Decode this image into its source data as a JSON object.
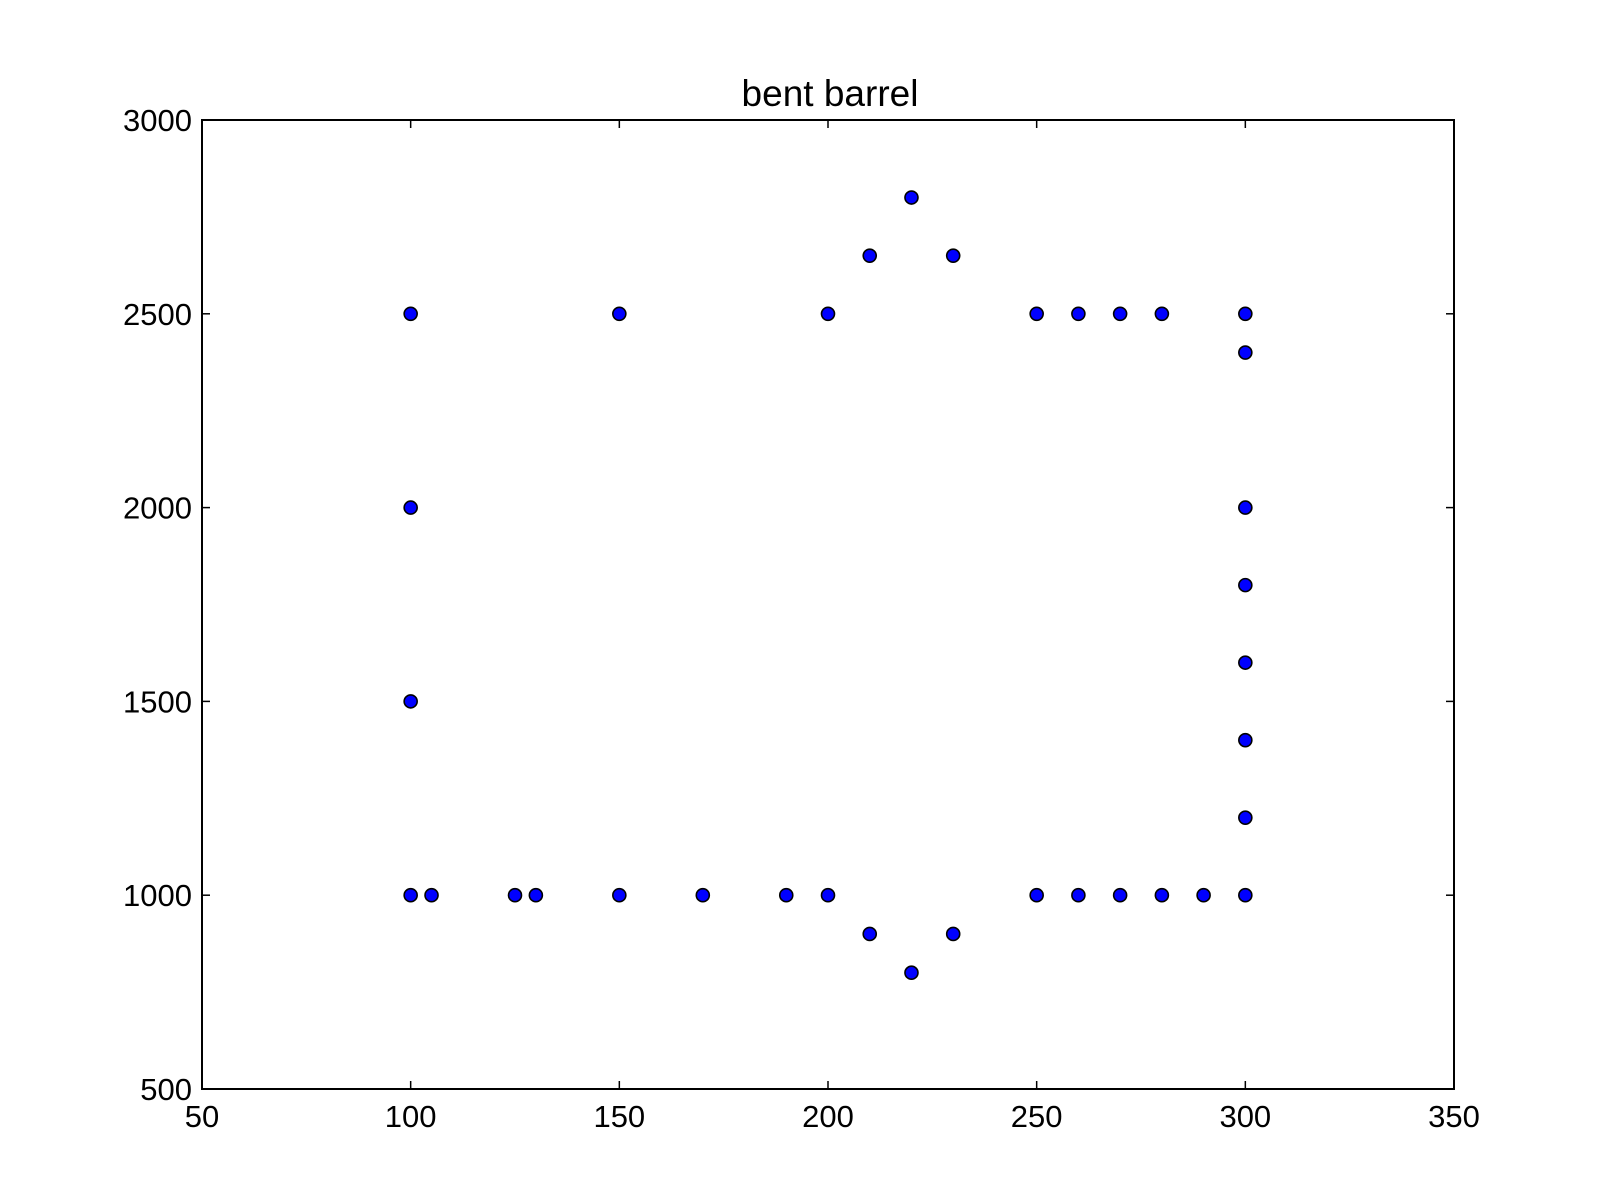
{
  "chart_data": {
    "type": "scatter",
    "title": "bent barrel",
    "xlabel": "",
    "ylabel": "",
    "xlim": [
      50,
      350
    ],
    "ylim": [
      500,
      3000
    ],
    "x_ticks": [
      50,
      100,
      150,
      200,
      250,
      300,
      350
    ],
    "y_ticks": [
      500,
      1000,
      1500,
      2000,
      2500,
      3000
    ],
    "x_tick_labels": [
      "50",
      "100",
      "150",
      "200",
      "250",
      "300",
      "350"
    ],
    "y_tick_labels": [
      "500",
      "1000",
      "1500",
      "2000",
      "2500",
      "3000"
    ],
    "grid": false,
    "legend": "none",
    "marker_color": "#0000ff",
    "marker_edge_color": "#000000",
    "series": [
      {
        "points": [
          [
            100,
            2500
          ],
          [
            150,
            2500
          ],
          [
            200,
            2500
          ],
          [
            210,
            2650
          ],
          [
            220,
            2800
          ],
          [
            230,
            2650
          ],
          [
            250,
            2500
          ],
          [
            260,
            2500
          ],
          [
            270,
            2500
          ],
          [
            280,
            2500
          ],
          [
            300,
            2500
          ],
          [
            300,
            2400
          ],
          [
            100,
            2000
          ],
          [
            300,
            2000
          ],
          [
            300,
            1800
          ],
          [
            300,
            1600
          ],
          [
            100,
            1500
          ],
          [
            300,
            1400
          ],
          [
            300,
            1200
          ],
          [
            100,
            1000
          ],
          [
            105,
            1000
          ],
          [
            125,
            1000
          ],
          [
            130,
            1000
          ],
          [
            150,
            1000
          ],
          [
            170,
            1000
          ],
          [
            190,
            1000
          ],
          [
            200,
            1000
          ],
          [
            210,
            900
          ],
          [
            220,
            800
          ],
          [
            230,
            900
          ],
          [
            250,
            1000
          ],
          [
            260,
            1000
          ],
          [
            270,
            1000
          ],
          [
            280,
            1000
          ],
          [
            290,
            1000
          ],
          [
            300,
            1000
          ]
        ]
      }
    ]
  }
}
